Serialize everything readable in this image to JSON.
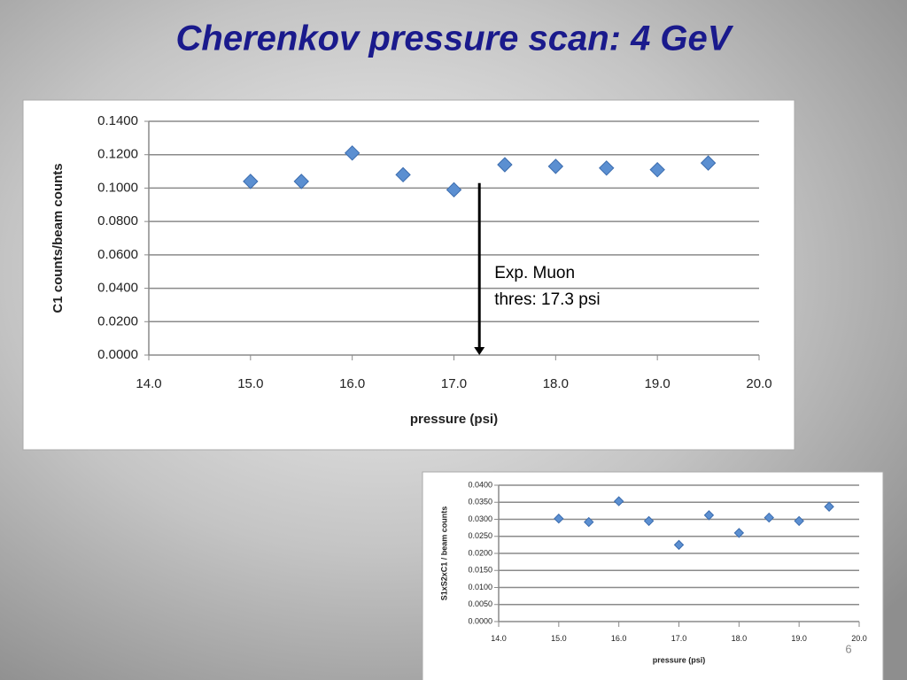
{
  "title": "Cherenkov pressure scan: 4 GeV",
  "page_number": "6",
  "chart_data": [
    {
      "type": "scatter",
      "x_label": "pressure (psi)",
      "y_label": "C1 counts/beam counts",
      "x": [
        15.0,
        15.5,
        16.0,
        16.5,
        17.0,
        17.5,
        18.0,
        18.5,
        19.0,
        19.5
      ],
      "series": [
        {
          "color": "#5b8fd1",
          "values": [
            0.104,
            0.104,
            0.121,
            0.108,
            0.099,
            0.114,
            0.113,
            0.112,
            0.111,
            0.115
          ]
        }
      ],
      "xlim": [
        14,
        20
      ],
      "xticks": [
        {
          "value": 14,
          "label": "14.0"
        },
        {
          "value": 15,
          "label": "15.0"
        },
        {
          "value": 16,
          "label": "16.0"
        },
        {
          "value": 17,
          "label": "17.0"
        },
        {
          "value": 18,
          "label": "18.0"
        },
        {
          "value": 19,
          "label": "19.0"
        },
        {
          "value": 20,
          "label": "20.0"
        }
      ],
      "ylim": [
        0,
        0.14
      ],
      "yticks": [
        {
          "value": 0,
          "label": "0.0000"
        },
        {
          "value": 0.02,
          "label": "0.0200"
        },
        {
          "value": 0.04,
          "label": "0.0400"
        },
        {
          "value": 0.06,
          "label": "0.0600"
        },
        {
          "value": 0.08,
          "label": "0.0800"
        },
        {
          "value": 0.1,
          "label": "0.1000"
        },
        {
          "value": 0.12,
          "label": "0.1200"
        },
        {
          "value": 0.14,
          "label": "0.1400"
        }
      ],
      "grid": true,
      "annotation": {
        "lines": [
          "Exp. Muon",
          "thres: 17.3 psi"
        ],
        "arrow_x": 17.25,
        "arrow_y": [
          0.103,
          0
        ]
      }
    },
    {
      "type": "scatter",
      "x_label": "pressure (psi)",
      "y_label": "S1xS2xC1 / beam counts",
      "x": [
        15.0,
        15.5,
        16.0,
        16.5,
        17.0,
        17.5,
        18.0,
        18.5,
        19.0,
        19.5
      ],
      "series": [
        {
          "color": "#5b8fd1",
          "values": [
            0.0302,
            0.0292,
            0.0353,
            0.0295,
            0.0225,
            0.0312,
            0.026,
            0.0305,
            0.0295,
            0.0337
          ]
        }
      ],
      "xlim": [
        14,
        20
      ],
      "xticks": [
        {
          "value": 14,
          "label": "14.0"
        },
        {
          "value": 15,
          "label": "15.0"
        },
        {
          "value": 16,
          "label": "16.0"
        },
        {
          "value": 17,
          "label": "17.0"
        },
        {
          "value": 18,
          "label": "18.0"
        },
        {
          "value": 19,
          "label": "19.0"
        },
        {
          "value": 20,
          "label": "20.0"
        }
      ],
      "ylim": [
        0,
        0.04
      ],
      "yticks": [
        {
          "value": 0,
          "label": "0.0000"
        },
        {
          "value": 0.005,
          "label": "0.0050"
        },
        {
          "value": 0.01,
          "label": "0.0100"
        },
        {
          "value": 0.015,
          "label": "0.0150"
        },
        {
          "value": 0.02,
          "label": "0.0200"
        },
        {
          "value": 0.025,
          "label": "0.0250"
        },
        {
          "value": 0.03,
          "label": "0.0300"
        },
        {
          "value": 0.035,
          "label": "0.0350"
        },
        {
          "value": 0.04,
          "label": "0.0400"
        }
      ],
      "grid": true
    }
  ]
}
